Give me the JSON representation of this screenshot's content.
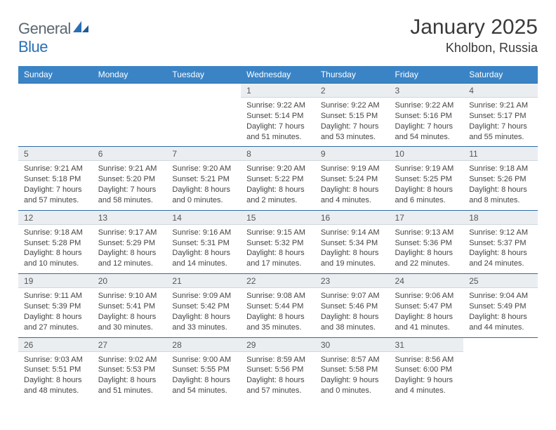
{
  "brand": {
    "word1": "General",
    "word2": "Blue"
  },
  "header": {
    "month": "January 2025",
    "location": "Kholbon, Russia"
  },
  "colors": {
    "header_bg": "#3a84c6",
    "header_text": "#ffffff",
    "daynum_bg": "#ebeef1",
    "border_dark": "#2f6aa8",
    "text": "#444444",
    "logo_gray": "#5a6770",
    "logo_blue": "#2a6fb5"
  },
  "weekdays": [
    "Sunday",
    "Monday",
    "Tuesday",
    "Wednesday",
    "Thursday",
    "Friday",
    "Saturday"
  ],
  "weeks": [
    {
      "days": [
        {
          "n": "",
          "l1": "",
          "l2": "",
          "l3": "",
          "l4": ""
        },
        {
          "n": "",
          "l1": "",
          "l2": "",
          "l3": "",
          "l4": ""
        },
        {
          "n": "",
          "l1": "",
          "l2": "",
          "l3": "",
          "l4": ""
        },
        {
          "n": "1",
          "l1": "Sunrise: 9:22 AM",
          "l2": "Sunset: 5:14 PM",
          "l3": "Daylight: 7 hours",
          "l4": "and 51 minutes."
        },
        {
          "n": "2",
          "l1": "Sunrise: 9:22 AM",
          "l2": "Sunset: 5:15 PM",
          "l3": "Daylight: 7 hours",
          "l4": "and 53 minutes."
        },
        {
          "n": "3",
          "l1": "Sunrise: 9:22 AM",
          "l2": "Sunset: 5:16 PM",
          "l3": "Daylight: 7 hours",
          "l4": "and 54 minutes."
        },
        {
          "n": "4",
          "l1": "Sunrise: 9:21 AM",
          "l2": "Sunset: 5:17 PM",
          "l3": "Daylight: 7 hours",
          "l4": "and 55 minutes."
        }
      ]
    },
    {
      "days": [
        {
          "n": "5",
          "l1": "Sunrise: 9:21 AM",
          "l2": "Sunset: 5:18 PM",
          "l3": "Daylight: 7 hours",
          "l4": "and 57 minutes."
        },
        {
          "n": "6",
          "l1": "Sunrise: 9:21 AM",
          "l2": "Sunset: 5:20 PM",
          "l3": "Daylight: 7 hours",
          "l4": "and 58 minutes."
        },
        {
          "n": "7",
          "l1": "Sunrise: 9:20 AM",
          "l2": "Sunset: 5:21 PM",
          "l3": "Daylight: 8 hours",
          "l4": "and 0 minutes."
        },
        {
          "n": "8",
          "l1": "Sunrise: 9:20 AM",
          "l2": "Sunset: 5:22 PM",
          "l3": "Daylight: 8 hours",
          "l4": "and 2 minutes."
        },
        {
          "n": "9",
          "l1": "Sunrise: 9:19 AM",
          "l2": "Sunset: 5:24 PM",
          "l3": "Daylight: 8 hours",
          "l4": "and 4 minutes."
        },
        {
          "n": "10",
          "l1": "Sunrise: 9:19 AM",
          "l2": "Sunset: 5:25 PM",
          "l3": "Daylight: 8 hours",
          "l4": "and 6 minutes."
        },
        {
          "n": "11",
          "l1": "Sunrise: 9:18 AM",
          "l2": "Sunset: 5:26 PM",
          "l3": "Daylight: 8 hours",
          "l4": "and 8 minutes."
        }
      ]
    },
    {
      "days": [
        {
          "n": "12",
          "l1": "Sunrise: 9:18 AM",
          "l2": "Sunset: 5:28 PM",
          "l3": "Daylight: 8 hours",
          "l4": "and 10 minutes."
        },
        {
          "n": "13",
          "l1": "Sunrise: 9:17 AM",
          "l2": "Sunset: 5:29 PM",
          "l3": "Daylight: 8 hours",
          "l4": "and 12 minutes."
        },
        {
          "n": "14",
          "l1": "Sunrise: 9:16 AM",
          "l2": "Sunset: 5:31 PM",
          "l3": "Daylight: 8 hours",
          "l4": "and 14 minutes."
        },
        {
          "n": "15",
          "l1": "Sunrise: 9:15 AM",
          "l2": "Sunset: 5:32 PM",
          "l3": "Daylight: 8 hours",
          "l4": "and 17 minutes."
        },
        {
          "n": "16",
          "l1": "Sunrise: 9:14 AM",
          "l2": "Sunset: 5:34 PM",
          "l3": "Daylight: 8 hours",
          "l4": "and 19 minutes."
        },
        {
          "n": "17",
          "l1": "Sunrise: 9:13 AM",
          "l2": "Sunset: 5:36 PM",
          "l3": "Daylight: 8 hours",
          "l4": "and 22 minutes."
        },
        {
          "n": "18",
          "l1": "Sunrise: 9:12 AM",
          "l2": "Sunset: 5:37 PM",
          "l3": "Daylight: 8 hours",
          "l4": "and 24 minutes."
        }
      ]
    },
    {
      "days": [
        {
          "n": "19",
          "l1": "Sunrise: 9:11 AM",
          "l2": "Sunset: 5:39 PM",
          "l3": "Daylight: 8 hours",
          "l4": "and 27 minutes."
        },
        {
          "n": "20",
          "l1": "Sunrise: 9:10 AM",
          "l2": "Sunset: 5:41 PM",
          "l3": "Daylight: 8 hours",
          "l4": "and 30 minutes."
        },
        {
          "n": "21",
          "l1": "Sunrise: 9:09 AM",
          "l2": "Sunset: 5:42 PM",
          "l3": "Daylight: 8 hours",
          "l4": "and 33 minutes."
        },
        {
          "n": "22",
          "l1": "Sunrise: 9:08 AM",
          "l2": "Sunset: 5:44 PM",
          "l3": "Daylight: 8 hours",
          "l4": "and 35 minutes."
        },
        {
          "n": "23",
          "l1": "Sunrise: 9:07 AM",
          "l2": "Sunset: 5:46 PM",
          "l3": "Daylight: 8 hours",
          "l4": "and 38 minutes."
        },
        {
          "n": "24",
          "l1": "Sunrise: 9:06 AM",
          "l2": "Sunset: 5:47 PM",
          "l3": "Daylight: 8 hours",
          "l4": "and 41 minutes."
        },
        {
          "n": "25",
          "l1": "Sunrise: 9:04 AM",
          "l2": "Sunset: 5:49 PM",
          "l3": "Daylight: 8 hours",
          "l4": "and 44 minutes."
        }
      ]
    },
    {
      "days": [
        {
          "n": "26",
          "l1": "Sunrise: 9:03 AM",
          "l2": "Sunset: 5:51 PM",
          "l3": "Daylight: 8 hours",
          "l4": "and 48 minutes."
        },
        {
          "n": "27",
          "l1": "Sunrise: 9:02 AM",
          "l2": "Sunset: 5:53 PM",
          "l3": "Daylight: 8 hours",
          "l4": "and 51 minutes."
        },
        {
          "n": "28",
          "l1": "Sunrise: 9:00 AM",
          "l2": "Sunset: 5:55 PM",
          "l3": "Daylight: 8 hours",
          "l4": "and 54 minutes."
        },
        {
          "n": "29",
          "l1": "Sunrise: 8:59 AM",
          "l2": "Sunset: 5:56 PM",
          "l3": "Daylight: 8 hours",
          "l4": "and 57 minutes."
        },
        {
          "n": "30",
          "l1": "Sunrise: 8:57 AM",
          "l2": "Sunset: 5:58 PM",
          "l3": "Daylight: 9 hours",
          "l4": "and 0 minutes."
        },
        {
          "n": "31",
          "l1": "Sunrise: 8:56 AM",
          "l2": "Sunset: 6:00 PM",
          "l3": "Daylight: 9 hours",
          "l4": "and 4 minutes."
        },
        {
          "n": "",
          "l1": "",
          "l2": "",
          "l3": "",
          "l4": ""
        }
      ]
    }
  ]
}
